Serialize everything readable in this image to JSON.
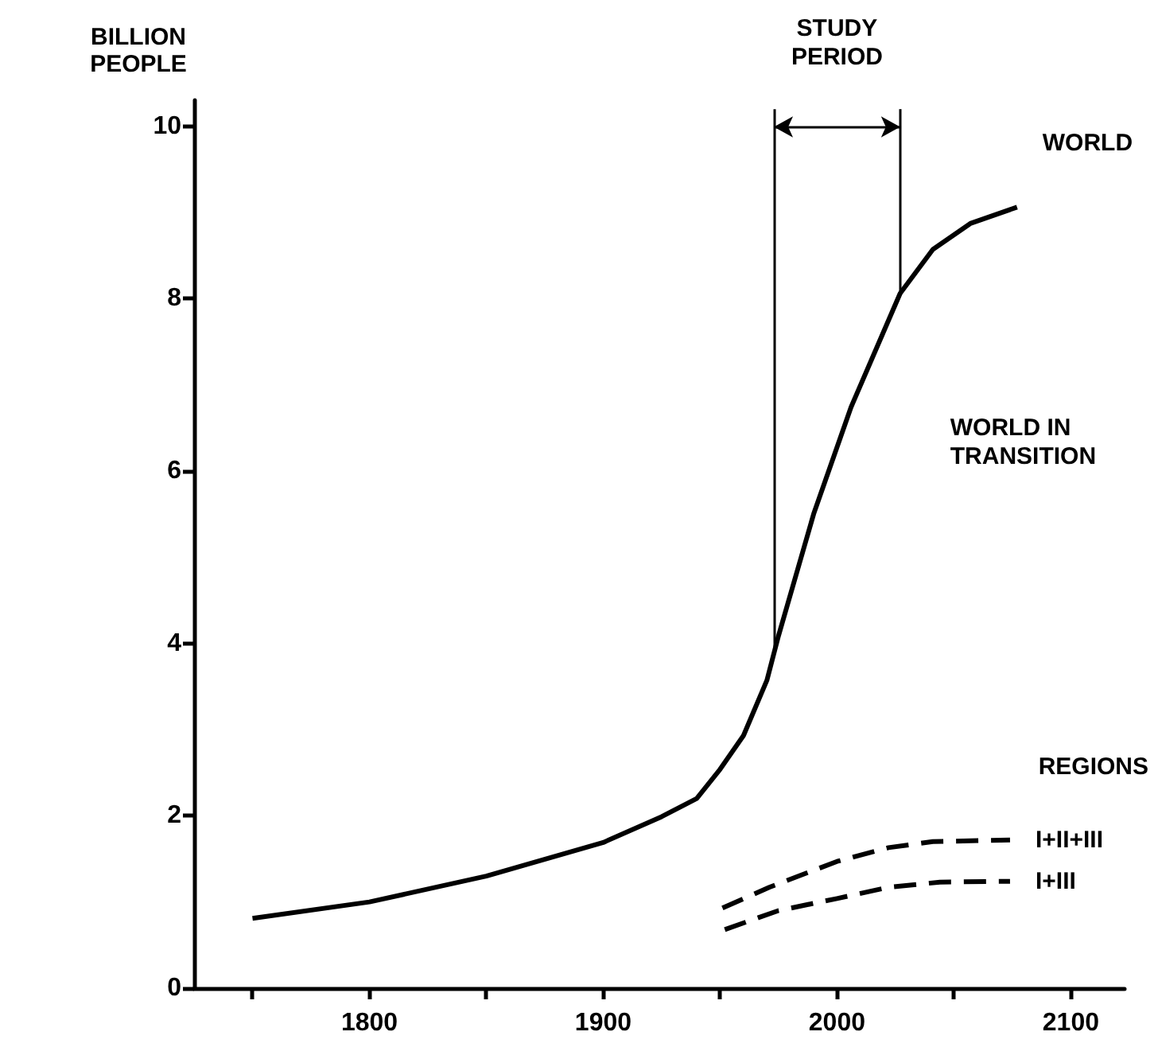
{
  "chart_data": {
    "type": "line",
    "ylabel": "BILLION PEOPLE",
    "x": [
      1750,
      1800,
      1850,
      1900,
      1925,
      1940,
      1950,
      1960,
      1970,
      1975,
      1990,
      2006,
      2027,
      2041,
      2057,
      2077
    ],
    "series": [
      {
        "name": "WORLD",
        "color": "#000000",
        "line_style": "solid",
        "values": [
          0.81,
          1.0,
          1.3,
          1.69,
          1.99,
          2.2,
          2.54,
          2.93,
          3.57,
          4.09,
          5.5,
          6.74,
          8.06,
          8.57,
          8.87,
          9.06
        ]
      },
      {
        "name": "I+II+III",
        "color": "#000000",
        "line_style": "dashed",
        "x": [
          1951,
          1971,
          2000,
          2022,
          2041,
          2074
        ],
        "values": [
          0.93,
          1.17,
          1.47,
          1.63,
          1.7,
          1.72
        ]
      },
      {
        "name": "I+III",
        "color": "#000000",
        "line_style": "dashed",
        "x": [
          1952,
          1975,
          2000,
          2022,
          2044,
          2074
        ],
        "values": [
          0.68,
          0.9,
          1.04,
          1.17,
          1.23,
          1.24
        ]
      }
    ],
    "xlim": [
      1725,
      2123
    ],
    "xticks": [
      {
        "value": 1750,
        "label": null
      },
      1800,
      {
        "value": 1850,
        "label": null
      },
      1900,
      {
        "value": 1950,
        "label": null
      },
      2000,
      {
        "value": 2050,
        "label": null
      },
      2100
    ],
    "ylim": [
      0,
      10.3
    ],
    "yticks": [
      0,
      2,
      4,
      6,
      8,
      10
    ],
    "ref_lines": [
      {
        "axis": "x",
        "value": 1973
      },
      {
        "axis": "x",
        "value": 2027
      }
    ],
    "annotations": [
      "STUDY PERIOD",
      "WORLD IN TRANSITION",
      "REGIONS"
    ],
    "grid": false,
    "legend": false,
    "marker": "none"
  }
}
